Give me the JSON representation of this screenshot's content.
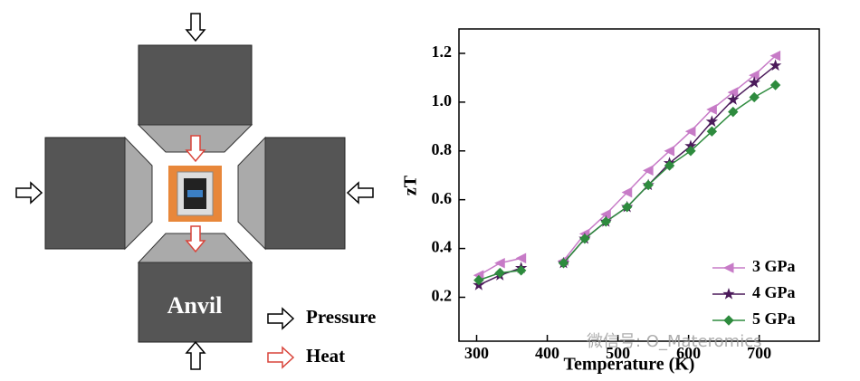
{
  "diagram": {
    "anvil": "Anvil",
    "pressure": "Pressure",
    "heat": "Heat",
    "watermark": "微信号: O_Materomics"
  },
  "chart_data": {
    "type": "line",
    "x_label": "Temperature (K)",
    "y_label": "zT",
    "x": [
      303,
      333,
      363,
      null,
      423,
      453,
      483,
      513,
      543,
      573,
      603,
      633,
      663,
      693,
      723
    ],
    "series": [
      {
        "name": "3 GPa",
        "color": "#c77bc7",
        "marker": "triangle-left",
        "values": [
          0.29,
          0.34,
          0.36,
          null,
          0.35,
          0.46,
          0.54,
          0.63,
          0.72,
          0.8,
          0.88,
          0.97,
          1.04,
          1.11,
          1.19
        ]
      },
      {
        "name": "4 GPa",
        "color": "#4b1a5a",
        "marker": "star",
        "values": [
          0.25,
          0.29,
          0.32,
          null,
          0.34,
          0.44,
          0.51,
          0.57,
          0.66,
          0.75,
          0.82,
          0.92,
          1.01,
          1.08,
          1.15
        ]
      },
      {
        "name": "5 GPa",
        "color": "#2e8b3e",
        "marker": "diamond",
        "values": [
          0.27,
          0.3,
          0.31,
          null,
          0.34,
          0.44,
          0.51,
          0.57,
          0.66,
          0.74,
          0.8,
          0.88,
          0.96,
          1.02,
          1.07
        ]
      }
    ],
    "xlim": [
      275,
      785
    ],
    "xticks": [
      300,
      400,
      500,
      600,
      700
    ],
    "ylim": [
      0.02,
      1.3
    ],
    "yticks": [
      0.2,
      0.4,
      0.6,
      0.8,
      {
        "value": 1,
        "label": "1.0"
      },
      1.2
    ],
    "legend": "lower right",
    "grid": false
  }
}
